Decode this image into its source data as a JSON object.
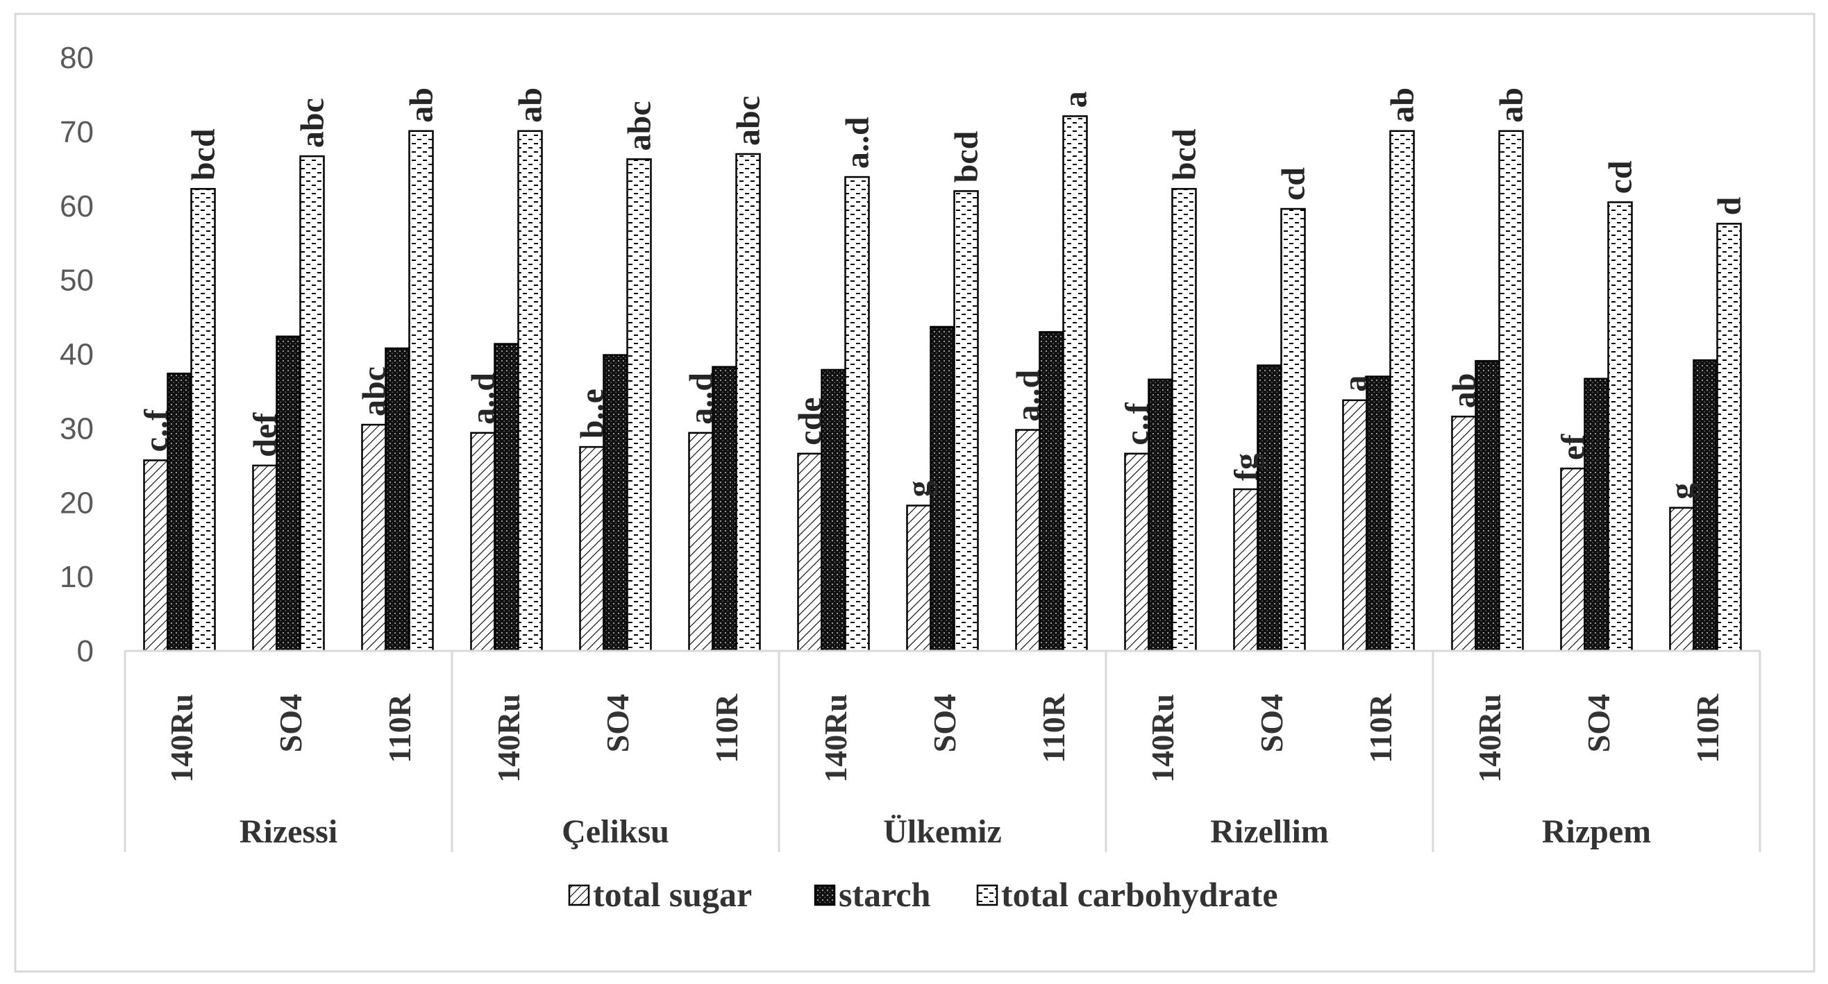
{
  "chart_data": {
    "type": "bar",
    "title": "",
    "xlabel": "",
    "ylabel": "",
    "ylim": [
      0,
      80
    ],
    "yticks": [
      0,
      10,
      20,
      30,
      40,
      50,
      60,
      70,
      80
    ],
    "groups": [
      {
        "name": "Rizessi",
        "categories": [
          "140Ru",
          "SO4",
          "110R"
        ]
      },
      {
        "name": "Çeliksu",
        "categories": [
          "140Ru",
          "SO4",
          "110R"
        ]
      },
      {
        "name": "Ülkemiz",
        "categories": [
          "140Ru",
          "SO4",
          "110R"
        ]
      },
      {
        "name": "Rizellim",
        "categories": [
          "140Ru",
          "SO4",
          "110R"
        ]
      },
      {
        "name": "Rizpem",
        "categories": [
          "140Ru",
          "SO4",
          "110R"
        ]
      }
    ],
    "series": [
      {
        "name": "total sugar",
        "pattern": "diagonal",
        "values": [
          25.7,
          25.0,
          30.5,
          29.4,
          27.5,
          29.4,
          26.6,
          19.6,
          29.8,
          26.6,
          21.8,
          33.8,
          31.6,
          24.6,
          19.3
        ],
        "labels": [
          "c..f",
          "def",
          "abc",
          "a..d",
          "b..e",
          "a..d",
          "cde",
          "g",
          "a..d",
          "c..f",
          "fg",
          "a",
          "ab",
          "ef",
          "g"
        ]
      },
      {
        "name": "starch",
        "pattern": "dark",
        "values": [
          37.4,
          42.4,
          40.8,
          41.4,
          39.9,
          38.3,
          37.9,
          43.7,
          43.0,
          36.6,
          38.5,
          37.0,
          39.1,
          36.7,
          39.2
        ],
        "labels": []
      },
      {
        "name": "total carbohydrate",
        "pattern": "dashed",
        "values": [
          62.3,
          66.7,
          70.1,
          70.1,
          66.3,
          67.0,
          63.9,
          62.0,
          72.1,
          62.3,
          59.6,
          70.1,
          70.1,
          60.5,
          57.6
        ],
        "labels": [
          "bcd",
          "abc",
          "ab",
          "ab",
          "abc",
          "abc",
          "a..d",
          "bcd",
          "a",
          "bcd",
          "cd",
          "ab",
          "ab",
          "cd",
          "d"
        ]
      }
    ],
    "legend": {
      "position": "bottom",
      "entries": [
        "total sugar",
        "starch",
        "total carbohydrate"
      ]
    }
  }
}
